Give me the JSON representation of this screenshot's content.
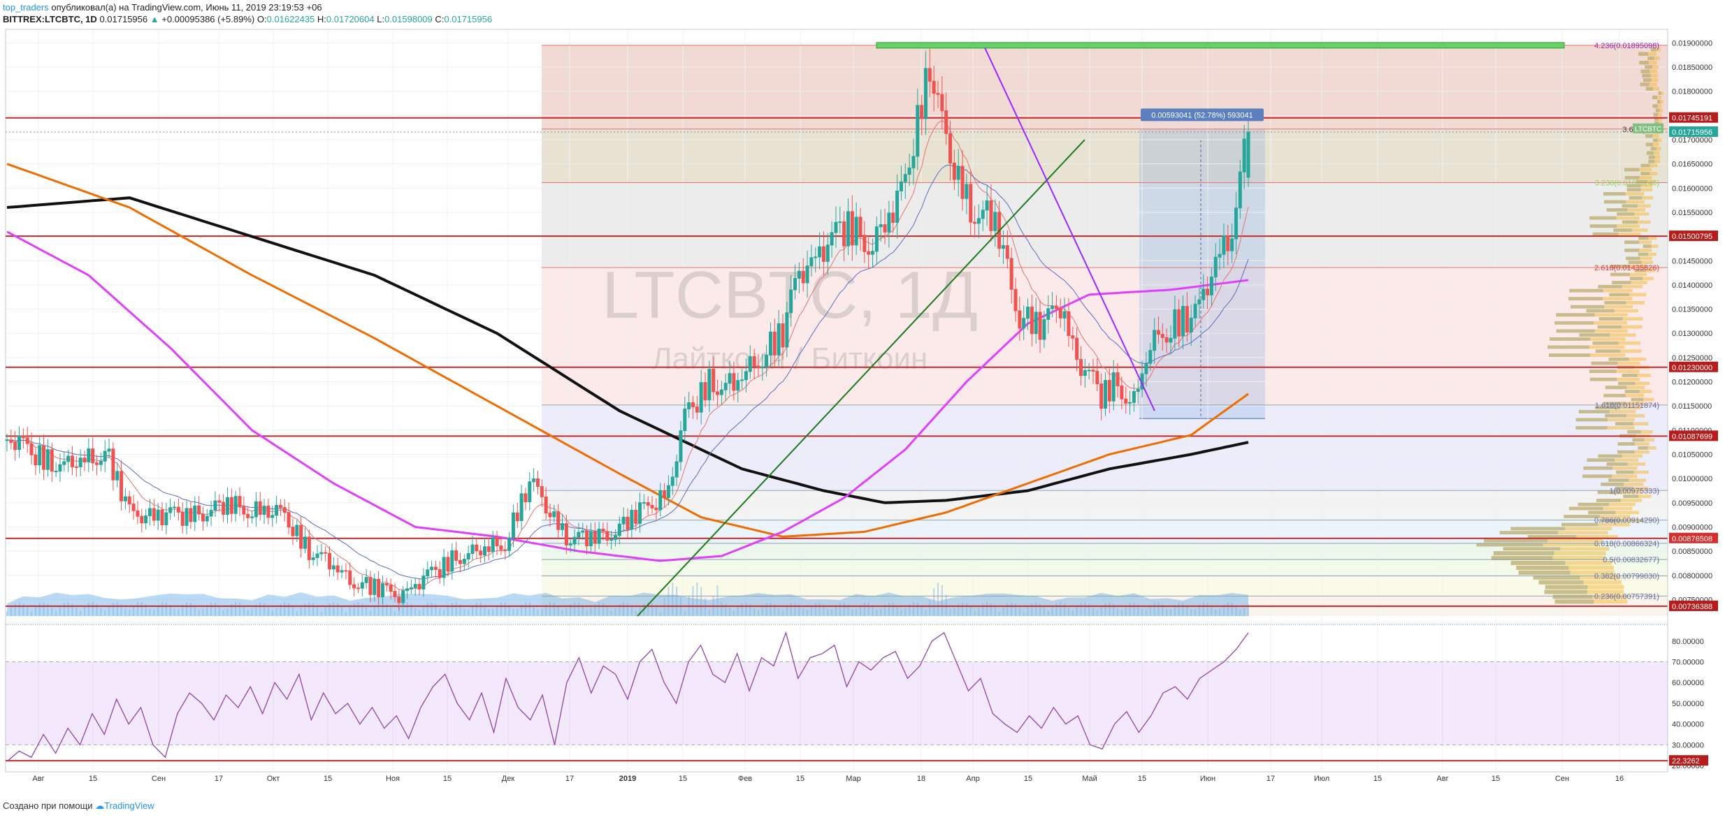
{
  "header": {
    "author": "top_traders",
    "published_text": "опубликовал(а) на TradingView.com, Июнь 11, 2019 23:19:53 +06",
    "symbol": "BITTREX:LTCBTC, 1D",
    "last": "0.01715956",
    "change": "+0.00095386 (+5.89%)",
    "o_label": "O:",
    "o": "0.01622435",
    "h_label": "H:",
    "h": "0.01720604",
    "l_label": "L:",
    "l": "0.01598009",
    "c_label": "C:",
    "c": "0.01715956"
  },
  "footer": {
    "text": "Создано при помощи",
    "brand": "TradingView"
  },
  "watermark": {
    "title": "LTCBTC, 1Д",
    "subtitle": "Лайткоин / Биткоин"
  },
  "colors": {
    "up": "#26a69a",
    "down": "#ef5350",
    "red_line": "#c62828",
    "ma200": "#111111",
    "ma100": "#ef6c00",
    "ma50": "#e040fb",
    "rsi": "#8e44ad",
    "accent": "#2196f3"
  },
  "chart_data": [
    {
      "type": "candlestick",
      "symbol": "BITTREX:LTCBTC",
      "interval": "1D",
      "x_ticks": [
        "Авг",
        "15",
        "Сен",
        "17",
        "Окт",
        "15",
        "Ноя",
        "15",
        "Дек",
        "17",
        "2019",
        "15",
        "Фев",
        "15",
        "Мар",
        "18",
        "Апр",
        "15",
        "Май",
        "15",
        "Июн",
        "17",
        "Июл",
        "15",
        "Авг",
        "15",
        "Сен",
        "16"
      ],
      "y_ticks": [
        "0.01900000",
        "0.01850000",
        "0.01800000",
        "0.01750000",
        "0.01700000",
        "0.01650000",
        "0.01600000",
        "0.01550000",
        "0.01500000",
        "0.01450000",
        "0.01400000",
        "0.01350000",
        "0.01300000",
        "0.01250000",
        "0.01200000",
        "0.01150000",
        "0.01100000",
        "0.01050000",
        "0.01000000",
        "0.00950000",
        "0.00900000",
        "0.00850000",
        "0.00800000",
        "0.00750000"
      ],
      "ylim": [
        0.00716,
        0.01928
      ],
      "close_path": [
        [
          0,
          0.0108
        ],
        [
          14,
          0.0102
        ],
        [
          24,
          0.0106
        ],
        [
          30,
          0.0093
        ],
        [
          42,
          0.0092
        ],
        [
          54,
          0.00945
        ],
        [
          62,
          0.00935
        ],
        [
          68,
          0.0092
        ],
        [
          74,
          0.0085
        ],
        [
          84,
          0.00795
        ],
        [
          88,
          0.0078
        ],
        [
          96,
          0.0076
        ],
        [
          104,
          0.008
        ],
        [
          110,
          0.0084
        ],
        [
          116,
          0.0085
        ],
        [
          122,
          0.0087
        ],
        [
          128,
          0.0099
        ],
        [
          138,
          0.0087
        ],
        [
          144,
          0.0088
        ],
        [
          150,
          0.009
        ],
        [
          158,
          0.0095
        ],
        [
          162,
          0.00975
        ],
        [
          166,
          0.0112
        ],
        [
          172,
          0.012
        ],
        [
          178,
          0.0119
        ],
        [
          184,
          0.0125
        ],
        [
          190,
          0.013
        ],
        [
          194,
          0.0142
        ],
        [
          200,
          0.0148
        ],
        [
          206,
          0.0152
        ],
        [
          212,
          0.0149
        ],
        [
          218,
          0.0156
        ],
        [
          222,
          0.017
        ],
        [
          226,
          0.0185
        ],
        [
          230,
          0.0168
        ],
        [
          236,
          0.0156
        ],
        [
          242,
          0.0153
        ],
        [
          248,
          0.0134
        ],
        [
          254,
          0.0131
        ],
        [
          258,
          0.0136
        ],
        [
          262,
          0.0125
        ],
        [
          268,
          0.0117
        ],
        [
          272,
          0.012
        ],
        [
          276,
          0.0116
        ],
        [
          280,
          0.0127
        ],
        [
          286,
          0.0132
        ],
        [
          292,
          0.0134
        ],
        [
          296,
          0.0145
        ],
        [
          300,
          0.0152
        ],
        [
          304,
          0.01716
        ]
      ],
      "series": [
        {
          "name": "MA200",
          "color": "#111111",
          "points": [
            [
              0,
              0.0156
            ],
            [
              30,
              0.0158
            ],
            [
              60,
              0.015
            ],
            [
              90,
              0.0142
            ],
            [
              120,
              0.013
            ],
            [
              150,
              0.0114
            ],
            [
              180,
              0.0102
            ],
            [
              200,
              0.00975
            ],
            [
              215,
              0.0095
            ],
            [
              230,
              0.00955
            ],
            [
              250,
              0.00975
            ],
            [
              270,
              0.0102
            ],
            [
              290,
              0.0105
            ],
            [
              304,
              0.01075
            ]
          ]
        },
        {
          "name": "MA100",
          "color": "#ef6c00",
          "points": [
            [
              0,
              0.0165
            ],
            [
              30,
              0.0156
            ],
            [
              60,
              0.0142
            ],
            [
              90,
              0.0129
            ],
            [
              120,
              0.0115
            ],
            [
              150,
              0.0101
            ],
            [
              170,
              0.0092
            ],
            [
              190,
              0.0088
            ],
            [
              210,
              0.0089
            ],
            [
              230,
              0.0093
            ],
            [
              250,
              0.0099
            ],
            [
              270,
              0.0105
            ],
            [
              290,
              0.0109
            ],
            [
              304,
              0.01175
            ]
          ]
        },
        {
          "name": "MA50",
          "color": "#e040fb",
          "points": [
            [
              0,
              0.0151
            ],
            [
              20,
              0.0142
            ],
            [
              40,
              0.0127
            ],
            [
              60,
              0.011
            ],
            [
              80,
              0.0099
            ],
            [
              100,
              0.009
            ],
            [
              120,
              0.0088
            ],
            [
              140,
              0.0085
            ],
            [
              160,
              0.0083
            ],
            [
              175,
              0.0084
            ],
            [
              190,
              0.0089
            ],
            [
              205,
              0.0096
            ],
            [
              220,
              0.0106
            ],
            [
              235,
              0.012
            ],
            [
              250,
              0.0132
            ],
            [
              265,
              0.0138
            ],
            [
              285,
              0.0139
            ],
            [
              304,
              0.0141
            ]
          ]
        }
      ],
      "fib_levels": [
        {
          "label": "4.236(0.01895098)",
          "value": 0.01895098
        },
        {
          "label": "3.618(0.01",
          "value": 0.01722
        },
        {
          "label": "3.236(0.01611246)",
          "value": 0.01611246
        },
        {
          "label": "2.618(0.01435826)",
          "value": 0.01435826
        },
        {
          "label": "1.618(0.01151874)",
          "value": 0.01151874
        },
        {
          "label": "1(0.00975333)",
          "value": 0.00975333
        },
        {
          "label": "0.786(0.00914290)",
          "value": 0.0091429
        },
        {
          "label": "0.618(0.00866324)",
          "value": 0.00866324
        },
        {
          "label": "0.5(0.00832677)",
          "value": 0.00832677
        },
        {
          "label": "0.382(0.00799030)",
          "value": 0.0079903
        },
        {
          "label": "0.236(0.00757391)",
          "value": 0.00757391
        }
      ],
      "horizontal_lines": [
        0.01745191,
        0.01500795,
        0.0123,
        0.01087699,
        0.00876508,
        0.00736388
      ],
      "price_tags": [
        {
          "label": "0.01745191",
          "value": 0.01745191,
          "color": "#b71c1c"
        },
        {
          "label": "0.01715956",
          "value": 0.01715956,
          "color": "#26a69a"
        },
        {
          "label": "0.01500795",
          "value": 0.01500795,
          "color": "#b71c1c"
        },
        {
          "label": "0.01230000",
          "value": 0.0123,
          "color": "#b71c1c"
        },
        {
          "label": "0.01087699",
          "value": 0.01087699,
          "color": "#b71c1c"
        },
        {
          "label": "0.00876508",
          "value": 0.00876508,
          "color": "#d32f2f"
        },
        {
          "label": "0.00736388",
          "value": 0.00736388,
          "color": "#b71c1c"
        }
      ],
      "ticker_tag": "LTCBTC",
      "measure_label": "0.00593041 (52.78%) 593041"
    },
    {
      "type": "line",
      "name": "RSI",
      "y_ticks": [
        "80.00000",
        "70.00000",
        "60.00000",
        "50.00000",
        "40.00000",
        "30.00000",
        "20.00000"
      ],
      "ylim": [
        17,
        86
      ],
      "bands": [
        30,
        70
      ],
      "level_tag": "22.3262",
      "values": [
        22,
        27,
        24,
        35,
        26,
        38,
        30,
        45,
        35,
        52,
        40,
        48,
        30,
        24,
        45,
        55,
        50,
        42,
        54,
        48,
        58,
        45,
        60,
        52,
        64,
        42,
        55,
        45,
        50,
        40,
        48,
        38,
        44,
        33,
        48,
        58,
        64,
        50,
        42,
        55,
        36,
        62,
        48,
        42,
        54,
        30,
        60,
        72,
        55,
        68,
        64,
        52,
        70,
        76,
        60,
        50,
        70,
        78,
        64,
        60,
        74,
        56,
        72,
        68,
        84,
        62,
        72,
        74,
        78,
        58,
        70,
        66,
        72,
        75,
        62,
        68,
        80,
        84,
        70,
        56,
        62,
        45,
        40,
        36,
        44,
        38,
        48,
        40,
        44,
        30,
        28,
        40,
        46,
        36,
        44,
        55,
        58,
        52,
        62,
        66,
        70,
        76,
        84
      ]
    }
  ]
}
